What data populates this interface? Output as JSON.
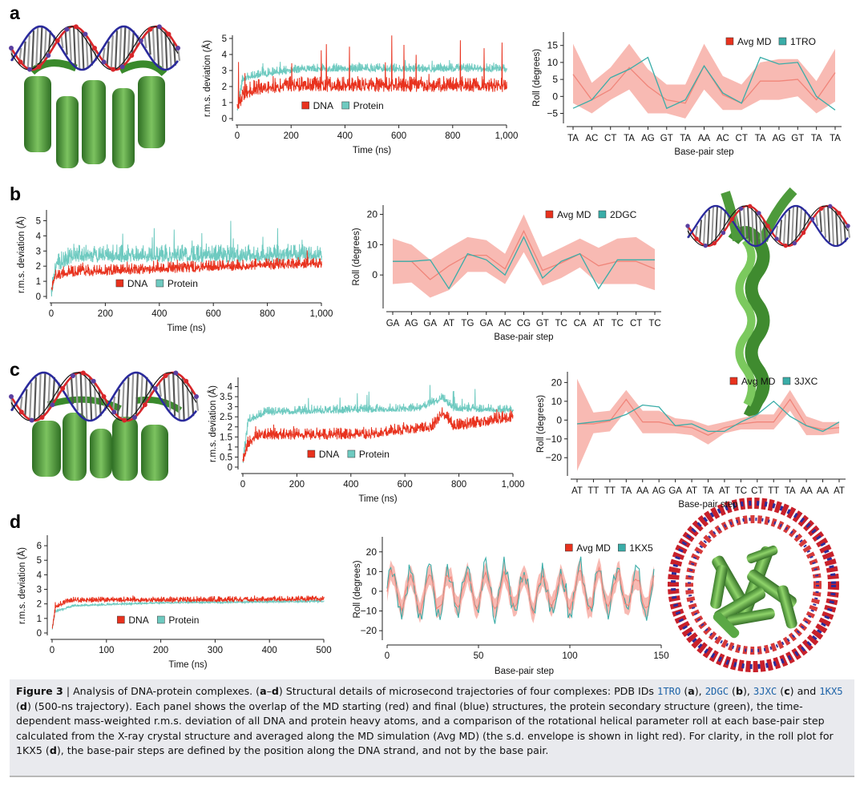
{
  "panel_letters": [
    "a",
    "b",
    "c",
    "d"
  ],
  "rmsd_panels": [
    {
      "panel": "a",
      "ylabel": "r.m.s. deviation (Å)",
      "xlabel": "Time (ns)",
      "xticks": [
        "0",
        "200",
        "400",
        "600",
        "800",
        "1,000"
      ],
      "yticks": [
        "0",
        "1",
        "2",
        "3",
        "4",
        "5"
      ],
      "legend": [
        "DNA",
        "Protein"
      ]
    },
    {
      "panel": "b",
      "ylabel": "r.m.s. deviation (Å)",
      "xlabel": "Time (ns)",
      "xticks": [
        "0",
        "200",
        "400",
        "600",
        "800",
        "1,000"
      ],
      "yticks": [
        "0",
        "1",
        "2",
        "3",
        "4",
        "5"
      ],
      "legend": [
        "DNA",
        "Protein"
      ]
    },
    {
      "panel": "c",
      "ylabel": "r.m.s. deviation (Å)",
      "xlabel": "Time (ns)",
      "xticks": [
        "0",
        "200",
        "400",
        "600",
        "800",
        "1,000"
      ],
      "yticks": [
        "0",
        "0.5",
        "1",
        "1.5",
        "2",
        "2.5",
        "3",
        "3.5",
        "4"
      ],
      "legend": [
        "DNA",
        "Protein"
      ]
    },
    {
      "panel": "d",
      "ylabel": "r.m.s. deviation (Å)",
      "xlabel": "Time (ns)",
      "xticks": [
        "0",
        "100",
        "200",
        "300",
        "400",
        "500"
      ],
      "yticks": [
        "0",
        "1",
        "2",
        "3",
        "4",
        "5",
        "6"
      ],
      "legend": [
        "DNA",
        "Protein"
      ]
    }
  ],
  "roll_panels": [
    {
      "panel": "a",
      "ylabel": "Roll (degrees)",
      "xlabel": "Base-pair step",
      "yticks": [
        "−5",
        "0",
        "5",
        "10",
        "15"
      ],
      "legend": [
        "Avg MD",
        "1TRO"
      ]
    },
    {
      "panel": "b",
      "ylabel": "Roll (degrees)",
      "xlabel": "Base-pair step",
      "yticks": [
        "0",
        "10",
        "20"
      ],
      "legend": [
        "Avg MD",
        "2DGC"
      ]
    },
    {
      "panel": "c",
      "ylabel": "Roll (degrees)",
      "xlabel": "Base-pair step",
      "yticks": [
        "−20",
        "−10",
        "0",
        "10",
        "20"
      ],
      "legend": [
        "Avg MD",
        "3JXC"
      ]
    },
    {
      "panel": "d",
      "ylabel": "Roll (degrees)",
      "xlabel": "Base-pair step",
      "xticks": [
        "0",
        "50",
        "100",
        "150"
      ],
      "yticks": [
        "−20",
        "−10",
        "0",
        "10",
        "20"
      ],
      "legend": [
        "Avg MD",
        "1KX5"
      ]
    }
  ],
  "colors": {
    "dna": "#e8321e",
    "protein": "#6ecac0",
    "avg_md": "#f0857a",
    "envelope": "#f7b3ab",
    "xray": "#3aada8",
    "helix_green": "#4a9a38",
    "strand_red": "#d8262a",
    "strand_blue": "#2a2a9c"
  },
  "chart_data": [
    {
      "panel": "a",
      "type": "line",
      "title": "",
      "xlabel": "Time (ns)",
      "ylabel": "r.m.s. deviation (Å)",
      "xlim": [
        0,
        1000
      ],
      "ylim": [
        0,
        5
      ],
      "series": [
        {
          "name": "DNA",
          "mean": 2.2,
          "noise": 0.45,
          "spike": 2.8,
          "early": [
            [
              0,
              0.9
            ],
            [
              20,
              1.6
            ],
            [
              60,
              2.0
            ],
            [
              200,
              2.2
            ],
            [
              1000,
              2.2
            ]
          ]
        },
        {
          "name": "Protein",
          "mean": 3.1,
          "noise": 0.25,
          "spike": 0.4,
          "early": [
            [
              0,
              0.6
            ],
            [
              20,
              2.6
            ],
            [
              100,
              2.9
            ],
            [
              260,
              3.2
            ],
            [
              1000,
              3.2
            ]
          ]
        }
      ]
    },
    {
      "panel": "a",
      "type": "line",
      "title": "",
      "xlabel": "Base-pair step",
      "ylabel": "Roll (degrees)",
      "ylim": [
        -7,
        18
      ],
      "categories": [
        "TA",
        "AC",
        "CT",
        "TA",
        "AG",
        "GT",
        "TA",
        "AA",
        "AC",
        "CT",
        "TA",
        "AG",
        "GT",
        "TA",
        "TA"
      ],
      "series": [
        {
          "name": "Avg MD",
          "values": [
            6.5,
            -1,
            2,
            8.5,
            3,
            -1,
            -2,
            9,
            0.5,
            -2,
            4.5,
            4.5,
            5,
            -1,
            7
          ]
        },
        {
          "name": "1TRO",
          "values": [
            -3.5,
            -1,
            5.5,
            8,
            11.5,
            -3.5,
            -1,
            9,
            1,
            -2,
            11.5,
            9.5,
            10,
            0,
            -4
          ]
        },
        {
          "name": "s.d. envelope",
          "lower": [
            -2,
            -5,
            -1,
            2,
            -5,
            -5,
            -6.5,
            2,
            -4,
            -4,
            -1,
            -1,
            0,
            -5,
            -1.5
          ],
          "upper": [
            15.5,
            4,
            8.5,
            15.5,
            8,
            3.5,
            3.5,
            15.5,
            6,
            3.5,
            10,
            11,
            11,
            4.5,
            14
          ]
        }
      ]
    },
    {
      "panel": "b",
      "type": "line",
      "title": "",
      "xlabel": "Time (ns)",
      "ylabel": "r.m.s. deviation (Å)",
      "xlim": [
        0,
        1000
      ],
      "ylim": [
        0,
        5.5
      ],
      "series": [
        {
          "name": "DNA",
          "mean": 1.95,
          "noise": 0.35,
          "spike": 0.5,
          "early": [
            [
              0,
              0.6
            ],
            [
              15,
              1.5
            ],
            [
              60,
              1.7
            ],
            [
              500,
              2.0
            ],
            [
              1000,
              2.3
            ]
          ]
        },
        {
          "name": "Protein",
          "mean": 2.9,
          "noise": 0.55,
          "spike": 1.8,
          "early": [
            [
              0,
              0.5
            ],
            [
              15,
              2.2
            ],
            [
              80,
              2.9
            ],
            [
              1000,
              2.9
            ]
          ]
        }
      ]
    },
    {
      "panel": "b",
      "type": "line",
      "title": "",
      "xlabel": "Base-pair step",
      "ylabel": "Roll (degrees)",
      "ylim": [
        -10,
        22
      ],
      "categories": [
        "GA",
        "AG",
        "GA",
        "AT",
        "TG",
        "GA",
        "AC",
        "CG",
        "GT",
        "TC",
        "CA",
        "AT",
        "TC",
        "CT",
        "TC"
      ],
      "series": [
        {
          "name": "Avg MD",
          "values": [
            4.5,
            4.5,
            -1.5,
            3,
            6.5,
            6.5,
            2,
            14.5,
            1.5,
            4,
            7,
            3,
            4.5,
            4.5,
            2
          ]
        },
        {
          "name": "2DGC",
          "values": [
            4.5,
            4.5,
            5,
            -4.5,
            7,
            5,
            0,
            12.5,
            -1,
            4.5,
            7,
            -4.5,
            5,
            5,
            5
          ]
        },
        {
          "name": "s.d. envelope",
          "lower": [
            -3,
            -2.5,
            -7.5,
            -5,
            1,
            1,
            -3,
            7.5,
            -3.5,
            -1,
            2.5,
            -3,
            -3,
            -3,
            -5
          ],
          "upper": [
            12,
            10,
            5,
            9,
            12.5,
            11.5,
            7,
            20,
            6,
            9,
            12,
            9,
            12,
            12.5,
            8.5
          ]
        }
      ]
    },
    {
      "panel": "c",
      "type": "line",
      "title": "",
      "xlabel": "Time (ns)",
      "ylabel": "r.m.s. deviation (Å)",
      "xlim": [
        0,
        1000
      ],
      "ylim": [
        0,
        4.3
      ],
      "series": [
        {
          "name": "DNA",
          "mean": 1.85,
          "noise": 0.28,
          "spike": 0.3,
          "early": [
            [
              0,
              0.4
            ],
            [
              20,
              1.3
            ],
            [
              60,
              1.7
            ],
            [
              450,
              1.7
            ],
            [
              700,
              2.1
            ],
            [
              740,
              2.8
            ],
            [
              780,
              2.1
            ],
            [
              1000,
              2.6
            ]
          ]
        },
        {
          "name": "Protein",
          "mean": 2.85,
          "noise": 0.2,
          "spike": 0.9,
          "early": [
            [
              0,
              0.4
            ],
            [
              20,
              2.4
            ],
            [
              80,
              2.8
            ],
            [
              650,
              3.0
            ],
            [
              740,
              3.5
            ],
            [
              780,
              3.0
            ],
            [
              1000,
              2.9
            ]
          ]
        }
      ]
    },
    {
      "panel": "c",
      "type": "line",
      "title": "",
      "xlabel": "Base-pair step",
      "ylabel": "Roll (degrees)",
      "ylim": [
        -28,
        24
      ],
      "categories": [
        "AT",
        "TT",
        "TT",
        "TA",
        "AA",
        "AG",
        "GA",
        "AT",
        "TA",
        "AT",
        "TC",
        "CT",
        "TT",
        "TA",
        "AA",
        "AA",
        "AT"
      ],
      "series": [
        {
          "name": "Avg MD",
          "values": [
            -2,
            -2,
            -0.5,
            11,
            -1,
            -1,
            -3,
            -4,
            -8,
            -4,
            -2,
            -1,
            -1,
            11,
            -3,
            -5,
            -4
          ]
        },
        {
          "name": "3JXC",
          "values": [
            -2,
            -1,
            0,
            3,
            8,
            7,
            -3,
            -2,
            -6,
            -6,
            -1,
            3,
            10,
            2,
            -3,
            -6,
            -1
          ]
        },
        {
          "name": "s.d. envelope",
          "lower": [
            -27,
            -7,
            -6,
            5,
            -7,
            -7,
            -7,
            -8,
            -13,
            -7,
            -5,
            -5,
            -5,
            5,
            -8,
            -8,
            -7
          ],
          "upper": [
            22,
            4,
            5,
            16,
            5,
            5,
            1,
            0,
            -3,
            -1,
            1,
            3,
            3,
            16,
            2,
            -1,
            -1
          ]
        }
      ]
    },
    {
      "panel": "d",
      "type": "line",
      "title": "",
      "xlabel": "Time (ns)",
      "ylabel": "r.m.s. deviation (Å)",
      "xlim": [
        0,
        500
      ],
      "ylim": [
        0,
        6.5
      ],
      "series": [
        {
          "name": "DNA",
          "mean": 2.4,
          "noise": 0.18,
          "spike": 0.2,
          "early": [
            [
              0,
              0.4
            ],
            [
              6,
              1.9
            ],
            [
              30,
              2.3
            ],
            [
              500,
              2.4
            ]
          ]
        },
        {
          "name": "Protein",
          "mean": 2.2,
          "noise": 0.07,
          "spike": 0.05,
          "early": [
            [
              0,
              0.3
            ],
            [
              5,
              1.5
            ],
            [
              40,
              1.9
            ],
            [
              200,
              2.1
            ],
            [
              500,
              2.2
            ]
          ]
        }
      ]
    },
    {
      "panel": "d",
      "type": "line",
      "title": "",
      "xlabel": "Base-pair step",
      "ylabel": "Roll (degrees)",
      "xlim": [
        0,
        150
      ],
      "ylim": [
        -24,
        26
      ],
      "n_steps": 146,
      "period": 10.3,
      "series": [
        {
          "name": "Avg MD",
          "amplitude": 9
        },
        {
          "name": "1KX5",
          "amplitude": 13
        },
        {
          "name": "s.d. envelope",
          "half_width": 5
        }
      ]
    }
  ],
  "caption": {
    "figure_label": "Figure 3",
    "sep": " | ",
    "title_text": "Analysis of DNA-protein complexes. (",
    "ad": "a",
    "dash": "–",
    "dd": "d",
    "intro": ") Structural details of microsecond trajectories of four complexes: PDB IDs ",
    "pdb_a": "1TRO",
    "p_a1": " (",
    "l_a": "a",
    "p_a2": "), ",
    "pdb_b": "2DGC",
    "p_b1": " (",
    "l_b": "b",
    "p_b2": "), ",
    "pdb_c": "3JXC",
    "p_c1": " (",
    "l_c": "c",
    "p_c2": ") and ",
    "pdb_d": "1KX5",
    "p_d1": " (",
    "l_d": "d",
    "rest1": ") (500-ns trajectory). Each panel shows the overlap of the MD starting (red) and final (blue) structures, the protein secondary structure (green), the time-dependent mass-weighted r.m.s. deviation of all DNA and protein heavy atoms, and a comparison of the rotational helical parameter roll at each base-pair step calculated from the X-ray crystal structure and averaged along the MD simulation (Avg MD) (the s.d. envelope is shown in light red). For clarity, in the roll plot for 1KX5 (",
    "l_d2": "d",
    "rest2": "), the base-pair steps are defined by the position along the DNA strand, and not by the base pair."
  }
}
